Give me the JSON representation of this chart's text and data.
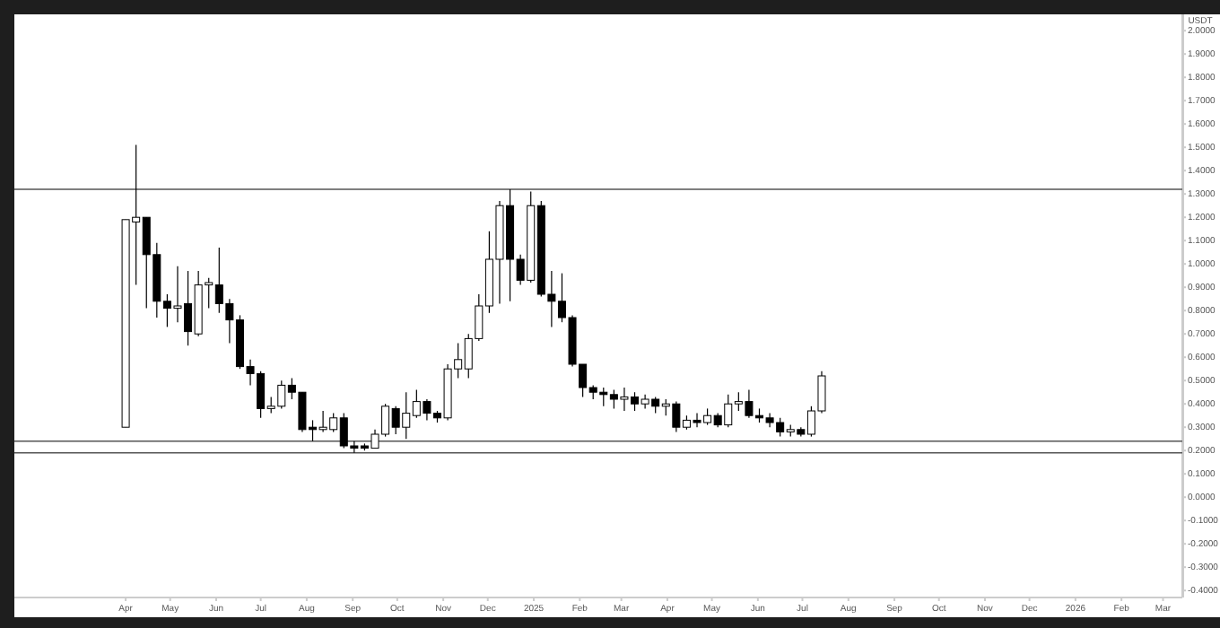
{
  "chart_data": {
    "type": "candlestick",
    "ylabel": "USDT",
    "color": "#000000",
    "x": [
      "2024-04-01",
      "2024-04-08",
      "2024-04-15",
      "2024-04-22",
      "2024-04-29",
      "2024-05-06",
      "2024-05-13",
      "2024-05-20",
      "2024-05-27",
      "2024-06-03",
      "2024-06-10",
      "2024-06-17",
      "2024-06-24",
      "2024-07-01",
      "2024-07-08",
      "2024-07-15",
      "2024-07-22",
      "2024-07-29",
      "2024-08-05",
      "2024-08-12",
      "2024-08-19",
      "2024-08-26",
      "2024-09-02",
      "2024-09-09",
      "2024-09-16",
      "2024-09-23",
      "2024-09-30",
      "2024-10-07",
      "2024-10-14",
      "2024-10-21",
      "2024-10-28",
      "2024-11-04",
      "2024-11-11",
      "2024-11-18",
      "2024-11-25",
      "2024-12-02",
      "2024-12-09",
      "2024-12-16",
      "2024-12-23",
      "2024-12-30",
      "2025-01-06",
      "2025-01-13",
      "2025-01-20",
      "2025-01-27",
      "2025-02-03",
      "2025-02-10",
      "2025-02-17",
      "2025-02-24",
      "2025-03-03",
      "2025-03-10",
      "2025-03-17",
      "2025-03-24",
      "2025-03-31",
      "2025-04-07",
      "2025-04-14",
      "2025-04-21",
      "2025-04-28",
      "2025-05-05",
      "2025-05-12",
      "2025-05-19",
      "2025-05-26",
      "2025-06-02",
      "2025-06-09",
      "2025-06-16",
      "2025-06-23",
      "2025-06-30",
      "2025-07-07",
      "2025-07-14"
    ],
    "ohlc": [
      [
        0.3,
        1.19,
        0.3,
        1.19
      ],
      [
        1.18,
        1.51,
        0.91,
        1.2
      ],
      [
        1.2,
        1.2,
        0.81,
        1.04
      ],
      [
        1.04,
        1.09,
        0.77,
        0.84
      ],
      [
        0.84,
        0.87,
        0.73,
        0.81
      ],
      [
        0.81,
        0.99,
        0.75,
        0.82
      ],
      [
        0.83,
        0.97,
        0.65,
        0.71
      ],
      [
        0.7,
        0.97,
        0.69,
        0.91
      ],
      [
        0.91,
        0.94,
        0.81,
        0.92
      ],
      [
        0.91,
        1.07,
        0.79,
        0.83
      ],
      [
        0.83,
        0.85,
        0.66,
        0.76
      ],
      [
        0.76,
        0.78,
        0.55,
        0.56
      ],
      [
        0.56,
        0.59,
        0.48,
        0.53
      ],
      [
        0.53,
        0.54,
        0.34,
        0.38
      ],
      [
        0.38,
        0.43,
        0.36,
        0.39
      ],
      [
        0.39,
        0.5,
        0.38,
        0.48
      ],
      [
        0.48,
        0.51,
        0.42,
        0.45
      ],
      [
        0.45,
        0.45,
        0.28,
        0.29
      ],
      [
        0.3,
        0.33,
        0.24,
        0.29
      ],
      [
        0.29,
        0.37,
        0.28,
        0.3
      ],
      [
        0.29,
        0.36,
        0.28,
        0.34
      ],
      [
        0.34,
        0.36,
        0.21,
        0.22
      ],
      [
        0.22,
        0.24,
        0.19,
        0.21
      ],
      [
        0.22,
        0.23,
        0.2,
        0.21
      ],
      [
        0.21,
        0.29,
        0.21,
        0.27
      ],
      [
        0.27,
        0.4,
        0.26,
        0.39
      ],
      [
        0.38,
        0.39,
        0.27,
        0.3
      ],
      [
        0.3,
        0.45,
        0.25,
        0.36
      ],
      [
        0.35,
        0.46,
        0.34,
        0.41
      ],
      [
        0.41,
        0.42,
        0.33,
        0.36
      ],
      [
        0.36,
        0.37,
        0.32,
        0.34
      ],
      [
        0.34,
        0.57,
        0.33,
        0.55
      ],
      [
        0.55,
        0.66,
        0.51,
        0.59
      ],
      [
        0.55,
        0.7,
        0.51,
        0.68
      ],
      [
        0.68,
        0.87,
        0.67,
        0.82
      ],
      [
        0.82,
        1.14,
        0.79,
        1.02
      ],
      [
        1.02,
        1.27,
        0.83,
        1.25
      ],
      [
        1.25,
        1.32,
        0.84,
        1.02
      ],
      [
        1.02,
        1.04,
        0.91,
        0.93
      ],
      [
        0.93,
        1.31,
        0.92,
        1.25
      ],
      [
        1.25,
        1.27,
        0.86,
        0.87
      ],
      [
        0.87,
        0.97,
        0.73,
        0.84
      ],
      [
        0.84,
        0.96,
        0.75,
        0.77
      ],
      [
        0.77,
        0.78,
        0.56,
        0.57
      ],
      [
        0.57,
        0.57,
        0.43,
        0.47
      ],
      [
        0.47,
        0.48,
        0.42,
        0.45
      ],
      [
        0.45,
        0.47,
        0.39,
        0.44
      ],
      [
        0.44,
        0.46,
        0.38,
        0.42
      ],
      [
        0.42,
        0.47,
        0.37,
        0.43
      ],
      [
        0.43,
        0.45,
        0.37,
        0.4
      ],
      [
        0.4,
        0.44,
        0.38,
        0.42
      ],
      [
        0.42,
        0.43,
        0.36,
        0.39
      ],
      [
        0.39,
        0.42,
        0.35,
        0.4
      ],
      [
        0.4,
        0.41,
        0.28,
        0.3
      ],
      [
        0.3,
        0.35,
        0.29,
        0.33
      ],
      [
        0.33,
        0.36,
        0.3,
        0.32
      ],
      [
        0.32,
        0.38,
        0.31,
        0.35
      ],
      [
        0.35,
        0.36,
        0.3,
        0.31
      ],
      [
        0.31,
        0.44,
        0.3,
        0.4
      ],
      [
        0.4,
        0.45,
        0.37,
        0.41
      ],
      [
        0.41,
        0.46,
        0.34,
        0.35
      ],
      [
        0.35,
        0.38,
        0.32,
        0.34
      ],
      [
        0.34,
        0.36,
        0.3,
        0.32
      ],
      [
        0.32,
        0.34,
        0.26,
        0.28
      ],
      [
        0.28,
        0.31,
        0.26,
        0.29
      ],
      [
        0.29,
        0.3,
        0.26,
        0.27
      ],
      [
        0.27,
        0.39,
        0.26,
        0.37
      ],
      [
        0.37,
        0.54,
        0.36,
        0.52
      ]
    ],
    "xlim": [
      "2024-01-17",
      "2026-03-14"
    ],
    "xticks": [
      {
        "value": "2024-04-01",
        "label": "Apr"
      },
      {
        "value": "2024-05-01",
        "label": "May"
      },
      {
        "value": "2024-06-01",
        "label": "Jun"
      },
      {
        "value": "2024-07-01",
        "label": "Jul"
      },
      {
        "value": "2024-08-01",
        "label": "Aug"
      },
      {
        "value": "2024-09-01",
        "label": "Sep"
      },
      {
        "value": "2024-10-01",
        "label": "Oct"
      },
      {
        "value": "2024-11-01",
        "label": "Nov"
      },
      {
        "value": "2024-12-01",
        "label": "Dec"
      },
      {
        "value": "2025-01-01",
        "label": "2025"
      },
      {
        "value": "2025-02-01",
        "label": "Feb"
      },
      {
        "value": "2025-03-01",
        "label": "Mar"
      },
      {
        "value": "2025-04-01",
        "label": "Apr"
      },
      {
        "value": "2025-05-01",
        "label": "May"
      },
      {
        "value": "2025-06-01",
        "label": "Jun"
      },
      {
        "value": "2025-07-01",
        "label": "Jul"
      },
      {
        "value": "2025-08-01",
        "label": "Aug"
      },
      {
        "value": "2025-09-01",
        "label": "Sep"
      },
      {
        "value": "2025-10-01",
        "label": "Oct"
      },
      {
        "value": "2025-11-01",
        "label": "Nov"
      },
      {
        "value": "2025-12-01",
        "label": "Dec"
      },
      {
        "value": "2026-01-01",
        "label": "2026"
      },
      {
        "value": "2026-02-01",
        "label": "Feb"
      },
      {
        "value": "2026-03-01",
        "label": "Mar"
      }
    ],
    "ylim": [
      -0.43,
      2.07
    ],
    "yticks": [
      {
        "value": -0.4,
        "label": "-0.4000"
      },
      {
        "value": -0.3,
        "label": "-0.3000"
      },
      {
        "value": -0.2,
        "label": "-0.2000"
      },
      {
        "value": -0.1,
        "label": "-0.1000"
      },
      {
        "value": 0,
        "label": "0.0000"
      },
      {
        "value": 0.1,
        "label": "0.1000"
      },
      {
        "value": 0.2,
        "label": "0.2000"
      },
      {
        "value": 0.3,
        "label": "0.3000"
      },
      {
        "value": 0.4,
        "label": "0.4000"
      },
      {
        "value": 0.5,
        "label": "0.5000"
      },
      {
        "value": 0.6,
        "label": "0.6000"
      },
      {
        "value": 0.7,
        "label": "0.7000"
      },
      {
        "value": 0.8,
        "label": "0.8000"
      },
      {
        "value": 0.9,
        "label": "0.9000"
      },
      {
        "value": 1.0,
        "label": "1.0000"
      },
      {
        "value": 1.1,
        "label": "1.1000"
      },
      {
        "value": 1.2,
        "label": "1.2000"
      },
      {
        "value": 1.3,
        "label": "1.3000"
      },
      {
        "value": 1.4,
        "label": "1.4000"
      },
      {
        "value": 1.5,
        "label": "1.5000"
      },
      {
        "value": 1.6,
        "label": "1.6000"
      },
      {
        "value": 1.7,
        "label": "1.7000"
      },
      {
        "value": 1.8,
        "label": "1.8000"
      },
      {
        "value": 1.9,
        "label": "1.9000"
      },
      {
        "value": 2.0,
        "label": "2.0000"
      }
    ],
    "ref_lines": [
      {
        "axis": "y",
        "value": 1.32,
        "color": "#555555"
      },
      {
        "axis": "y",
        "value": 0.24,
        "color": "#555555"
      },
      {
        "axis": "y",
        "value": 0.19,
        "color": "#555555"
      }
    ],
    "grid": false
  }
}
